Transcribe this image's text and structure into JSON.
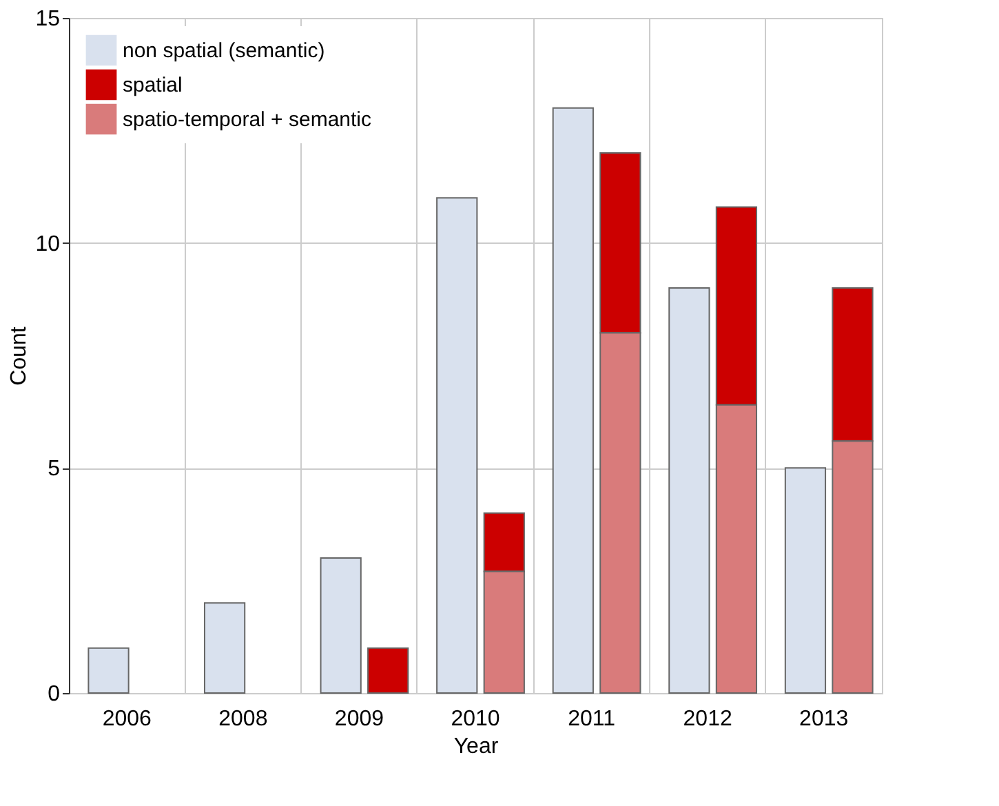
{
  "chart_data": {
    "type": "bar",
    "xlabel": "Year",
    "ylabel": "Count",
    "categories": [
      "2006",
      "2008",
      "2009",
      "2010",
      "2011",
      "2012",
      "2013"
    ],
    "series": [
      {
        "name": "non spatial (semantic)",
        "color": "#d9e1ee",
        "values": [
          1,
          2,
          3,
          11,
          13,
          9,
          5
        ]
      },
      {
        "name": "spatial",
        "color": "#cc0000",
        "values": [
          null,
          null,
          1,
          1.3,
          4,
          4.4,
          3.4
        ],
        "base": [
          null,
          null,
          0,
          2.7,
          8,
          6.4,
          5.6
        ]
      },
      {
        "name": "spatio-temporal + semantic",
        "color": "#d97b7b",
        "values": [
          null,
          null,
          null,
          2.7,
          8,
          6.4,
          5.6
        ]
      }
    ],
    "ylim": [
      0,
      15
    ],
    "yticks": [
      0,
      5,
      10,
      15
    ],
    "grid": true,
    "legend": "top left"
  }
}
